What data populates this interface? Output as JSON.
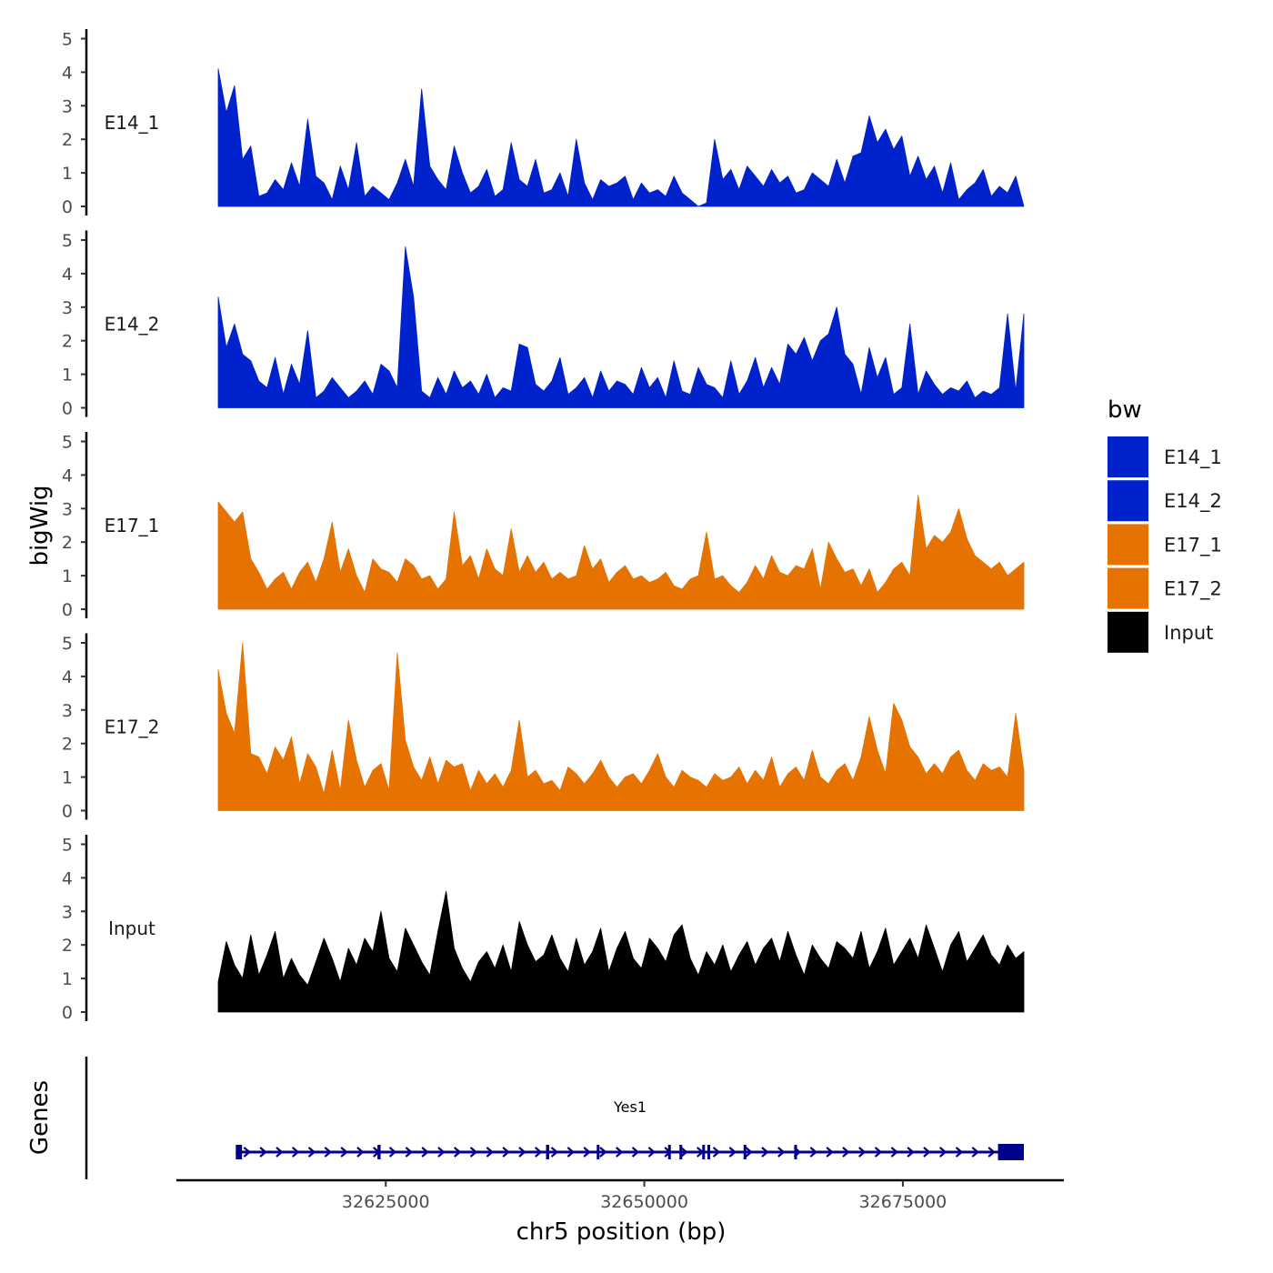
{
  "chart_data": {
    "type": "area",
    "y_title": "bigWig",
    "x_title": "chr5 position (bp)",
    "x_range": [
      32608800,
      32686700
    ],
    "x_ticks": [
      32625000,
      32650000,
      32675000
    ],
    "x_tick_labels": [
      "32625000",
      "32650000",
      "32675000"
    ],
    "y_ticks": [
      0,
      1,
      2,
      3,
      4,
      5
    ],
    "y_tick_labels": [
      "0",
      "1",
      "2",
      "3",
      "4",
      "5"
    ],
    "ylim": [
      0,
      5
    ],
    "legend": {
      "title": "bw",
      "entries": [
        {
          "label": "E14_1",
          "color": "#0022CC"
        },
        {
          "label": "E14_2",
          "color": "#0022CC"
        },
        {
          "label": "E17_1",
          "color": "#E67300"
        },
        {
          "label": "E17_2",
          "color": "#E67300"
        },
        {
          "label": "Input",
          "color": "#000000"
        }
      ]
    },
    "series": [
      {
        "name": "E14_1",
        "color": "#0022CC",
        "start": 32608800,
        "end": 32686700,
        "step": 1100,
        "values": [
          4.1,
          2.8,
          3.6,
          1.4,
          1.8,
          0.3,
          0.4,
          0.8,
          0.5,
          1.3,
          0.6,
          2.6,
          0.9,
          0.7,
          0.2,
          1.2,
          0.5,
          1.9,
          0.3,
          0.6,
          0.4,
          0.2,
          0.7,
          1.4,
          0.6,
          3.5,
          1.2,
          0.8,
          0.5,
          1.8,
          1.0,
          0.4,
          0.6,
          1.1,
          0.3,
          0.5,
          1.9,
          0.8,
          0.6,
          1.4,
          0.4,
          0.5,
          1.0,
          0.3,
          2.0,
          0.7,
          0.2,
          0.8,
          0.6,
          0.7,
          0.9,
          0.2,
          0.7,
          0.4,
          0.5,
          0.3,
          0.9,
          0.4,
          0.2,
          0.0,
          0.1,
          2.0,
          0.8,
          1.1,
          0.5,
          1.2,
          0.9,
          0.6,
          1.1,
          0.7,
          0.9,
          0.4,
          0.5,
          1.0,
          0.8,
          0.6,
          1.4,
          0.7,
          1.5,
          1.6,
          2.7,
          1.9,
          2.3,
          1.7,
          2.1,
          0.9,
          1.5,
          0.8,
          1.2,
          0.4,
          1.3,
          0.2,
          0.5,
          0.7,
          1.1,
          0.3,
          0.6,
          0.4,
          0.9,
          0.0
        ]
      },
      {
        "name": "E14_2",
        "color": "#0022CC",
        "start": 32608800,
        "end": 32686700,
        "step": 1100,
        "values": [
          3.3,
          1.8,
          2.5,
          1.6,
          1.4,
          0.8,
          0.6,
          1.5,
          0.4,
          1.3,
          0.7,
          2.3,
          0.3,
          0.5,
          0.9,
          0.6,
          0.3,
          0.5,
          0.8,
          0.4,
          1.3,
          1.1,
          0.6,
          4.8,
          3.3,
          0.5,
          0.3,
          0.9,
          0.4,
          1.1,
          0.6,
          0.8,
          0.4,
          1.0,
          0.3,
          0.6,
          0.5,
          1.9,
          1.8,
          0.7,
          0.5,
          0.8,
          1.5,
          0.4,
          0.6,
          0.9,
          0.3,
          1.1,
          0.5,
          0.8,
          0.7,
          0.4,
          1.2,
          0.6,
          0.9,
          0.3,
          1.4,
          0.5,
          0.4,
          1.2,
          0.7,
          0.6,
          0.3,
          1.4,
          0.4,
          0.8,
          1.5,
          0.6,
          1.2,
          0.7,
          1.9,
          1.6,
          2.1,
          1.4,
          2.0,
          2.2,
          3.0,
          1.6,
          1.3,
          0.4,
          1.8,
          0.9,
          1.5,
          0.4,
          0.6,
          2.5,
          0.4,
          1.1,
          0.7,
          0.4,
          0.6,
          0.5,
          0.8,
          0.3,
          0.5,
          0.4,
          0.6,
          2.8,
          0.5,
          2.8
        ]
      },
      {
        "name": "E17_1",
        "color": "#E67300",
        "start": 32608800,
        "end": 32686700,
        "step": 1100,
        "values": [
          3.2,
          2.9,
          2.6,
          2.9,
          1.5,
          1.1,
          0.6,
          0.9,
          1.1,
          0.6,
          1.1,
          1.4,
          0.8,
          1.5,
          2.6,
          1.1,
          1.8,
          1.0,
          0.5,
          1.5,
          1.2,
          1.1,
          0.8,
          1.5,
          1.3,
          0.9,
          1.0,
          0.6,
          0.9,
          2.9,
          1.3,
          1.6,
          0.9,
          1.8,
          1.2,
          1.0,
          2.4,
          1.1,
          1.6,
          1.1,
          1.4,
          0.9,
          1.1,
          0.9,
          1.0,
          1.9,
          1.2,
          1.5,
          0.8,
          1.1,
          1.3,
          0.9,
          1.0,
          0.8,
          0.9,
          1.1,
          0.7,
          0.6,
          0.9,
          1.0,
          2.3,
          0.9,
          1.0,
          0.7,
          0.5,
          0.8,
          1.3,
          0.9,
          1.6,
          1.1,
          1.0,
          1.3,
          1.2,
          1.8,
          0.6,
          2.0,
          1.5,
          1.1,
          1.2,
          0.7,
          1.2,
          0.5,
          0.8,
          1.2,
          1.4,
          1.0,
          3.4,
          1.8,
          2.2,
          2.0,
          2.3,
          3.0,
          2.1,
          1.6,
          1.4,
          1.2,
          1.4,
          1.0,
          1.2,
          1.4
        ]
      },
      {
        "name": "E17_2",
        "color": "#E67300",
        "start": 32608800,
        "end": 32686700,
        "step": 1100,
        "values": [
          4.2,
          2.9,
          2.3,
          5.0,
          1.7,
          1.6,
          1.1,
          1.9,
          1.5,
          2.2,
          0.8,
          1.7,
          1.3,
          0.5,
          1.8,
          0.6,
          2.7,
          1.5,
          0.7,
          1.2,
          1.4,
          0.6,
          4.7,
          2.1,
          1.3,
          0.9,
          1.6,
          0.8,
          1.5,
          1.3,
          1.4,
          0.6,
          1.2,
          0.8,
          1.1,
          0.7,
          1.2,
          2.7,
          1.0,
          1.2,
          0.8,
          0.9,
          0.6,
          1.3,
          1.1,
          0.8,
          1.1,
          1.5,
          1.0,
          0.7,
          1.0,
          1.1,
          0.8,
          1.2,
          1.7,
          1.0,
          0.7,
          1.2,
          1.0,
          0.9,
          0.7,
          1.1,
          0.9,
          1.0,
          1.3,
          0.8,
          1.2,
          0.9,
          1.6,
          0.7,
          1.1,
          1.3,
          0.9,
          1.8,
          1.0,
          0.8,
          1.2,
          1.4,
          0.9,
          1.6,
          2.8,
          1.8,
          1.1,
          3.2,
          2.7,
          1.9,
          1.6,
          1.1,
          1.4,
          1.1,
          1.6,
          1.8,
          1.2,
          0.9,
          1.4,
          1.2,
          1.3,
          1.0,
          2.9,
          1.2
        ]
      },
      {
        "name": "Input",
        "color": "#000000",
        "start": 32608800,
        "end": 32686700,
        "step": 1100,
        "values": [
          0.9,
          2.1,
          1.4,
          1.0,
          2.3,
          1.1,
          1.7,
          2.4,
          1.0,
          1.6,
          1.1,
          0.8,
          1.5,
          2.2,
          1.6,
          0.9,
          1.9,
          1.4,
          2.2,
          1.8,
          3.0,
          1.6,
          1.2,
          2.5,
          2.0,
          1.5,
          1.1,
          2.4,
          3.6,
          1.9,
          1.3,
          0.9,
          1.5,
          1.8,
          1.3,
          2.0,
          1.2,
          2.7,
          2.0,
          1.5,
          1.7,
          2.3,
          1.6,
          1.2,
          2.2,
          1.4,
          1.8,
          2.5,
          1.2,
          1.9,
          2.4,
          1.6,
          1.3,
          2.2,
          1.9,
          1.5,
          2.3,
          2.6,
          1.6,
          1.1,
          1.8,
          1.4,
          2.0,
          1.2,
          1.7,
          2.1,
          1.4,
          1.9,
          2.2,
          1.5,
          2.4,
          1.7,
          1.1,
          2.0,
          1.6,
          1.3,
          2.1,
          1.9,
          1.6,
          2.4,
          1.3,
          1.8,
          2.5,
          1.4,
          1.8,
          2.2,
          1.6,
          2.6,
          1.9,
          1.2,
          2.0,
          2.4,
          1.5,
          1.9,
          2.3,
          1.7,
          1.4,
          2.0,
          1.6,
          1.8
        ]
      }
    ],
    "gene_track": {
      "label": "Genes",
      "gene_name": "Yes1",
      "gene_start": 32610500,
      "gene_end": 32686700,
      "color": "#00008B",
      "exons": [
        {
          "start": 32610500,
          "end": 32611100
        },
        {
          "start": 32624200,
          "end": 32624500
        },
        {
          "start": 32640500,
          "end": 32640800
        },
        {
          "start": 32645400,
          "end": 32645600
        },
        {
          "start": 32652300,
          "end": 32652500
        },
        {
          "start": 32653400,
          "end": 32653600
        },
        {
          "start": 32655600,
          "end": 32655800
        },
        {
          "start": 32656100,
          "end": 32656300
        },
        {
          "start": 32659600,
          "end": 32659800
        },
        {
          "start": 32664500,
          "end": 32664700
        },
        {
          "start": 32684200,
          "end": 32686700
        }
      ]
    }
  }
}
